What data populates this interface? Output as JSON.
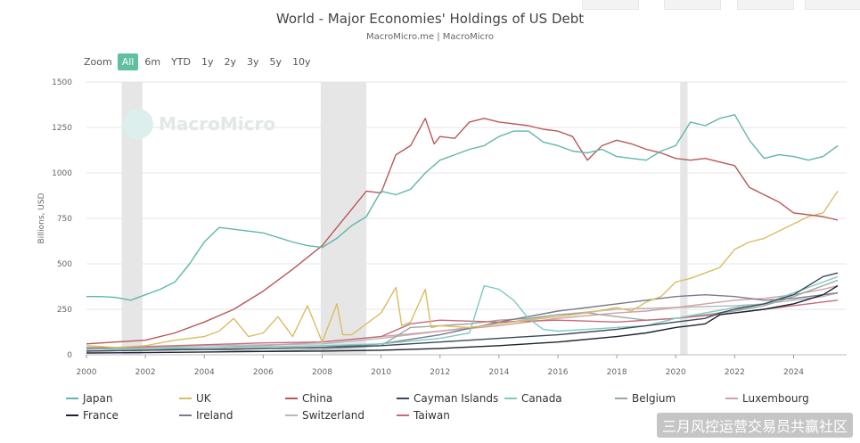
{
  "chart": {
    "title": "World - Major Economies' Holdings of US Debt",
    "subtitle": "MacroMicro.me | MacroMicro",
    "watermark_text": "MacroMicro"
  },
  "zoom": {
    "label": "Zoom",
    "options": [
      "All",
      "6m",
      "YTD",
      "1y",
      "2y",
      "3y",
      "5y",
      "10y"
    ],
    "active": "All"
  },
  "corner_watermark": "三月风控运营交易员共赢社区",
  "colors": {
    "Japan": "#5fb7aa",
    "UK": "#d9bd62",
    "China": "#b85858",
    "Cayman Islands": "#3a4a5c",
    "Canada": "#7fc9c2",
    "Belgium": "#99a8a0",
    "Luxembourg": "#d0a0a8",
    "France": "#1d2330",
    "Ireland": "#7a7a8c",
    "Switzerland": "#b8b8b8",
    "Taiwan": "#c86a78"
  },
  "chart_data": {
    "type": "line",
    "title": "World - Major Economies' Holdings of US Debt",
    "xlabel": "",
    "ylabel": "Billions, USD",
    "xlim": [
      2000,
      2025.8
    ],
    "ylim": [
      0,
      1500
    ],
    "x_ticks": [
      2000,
      2002,
      2004,
      2006,
      2008,
      2010,
      2012,
      2014,
      2016,
      2018,
      2020,
      2022,
      2024
    ],
    "y_ticks": [
      0,
      250,
      500,
      750,
      1000,
      1250,
      1500
    ],
    "recession_shading": [
      [
        2001.2,
        2001.9
      ],
      [
        2007.95,
        2009.5
      ],
      [
        2020.15,
        2020.4
      ]
    ],
    "legend_position": "bottom",
    "series": [
      {
        "name": "Japan",
        "x": [
          2000,
          2000.5,
          2001,
          2001.5,
          2002,
          2002.5,
          2003,
          2003.5,
          2004,
          2004.5,
          2005,
          2006,
          2007,
          2007.5,
          2008,
          2008.5,
          2009,
          2009.5,
          2010,
          2010.5,
          2011,
          2011.5,
          2012,
          2012.5,
          2013,
          2013.5,
          2014,
          2014.5,
          2015,
          2015.5,
          2016,
          2016.5,
          2017,
          2017.5,
          2018,
          2018.5,
          2019,
          2019.5,
          2020,
          2020.5,
          2021,
          2021.5,
          2022,
          2022.5,
          2023,
          2023.5,
          2024,
          2024.5,
          2025,
          2025.5
        ],
        "values": [
          320,
          320,
          315,
          300,
          330,
          360,
          400,
          500,
          620,
          700,
          690,
          670,
          620,
          600,
          590,
          640,
          710,
          760,
          900,
          880,
          910,
          1000,
          1070,
          1100,
          1130,
          1150,
          1200,
          1230,
          1230,
          1170,
          1150,
          1120,
          1110,
          1130,
          1090,
          1080,
          1070,
          1120,
          1150,
          1280,
          1260,
          1300,
          1320,
          1180,
          1080,
          1100,
          1090,
          1070,
          1090,
          1150
        ]
      },
      {
        "name": "UK",
        "x": [
          2000,
          2001,
          2002,
          2003,
          2004,
          2004.5,
          2005,
          2005.5,
          2006,
          2006.5,
          2007,
          2007.5,
          2008,
          2008.5,
          2008.7,
          2009,
          2010,
          2010.5,
          2010.7,
          2011,
          2011.5,
          2011.7,
          2012,
          2013,
          2014,
          2015,
          2016,
          2017,
          2018,
          2018.5,
          2019,
          2019.5,
          2020,
          2020.5,
          2021,
          2021.5,
          2022,
          2022.5,
          2023,
          2023.5,
          2024,
          2024.5,
          2025,
          2025.5
        ],
        "values": [
          50,
          40,
          50,
          80,
          100,
          130,
          200,
          100,
          120,
          210,
          100,
          270,
          70,
          280,
          110,
          110,
          230,
          370,
          160,
          180,
          360,
          150,
          160,
          150,
          170,
          190,
          210,
          230,
          260,
          240,
          290,
          320,
          400,
          420,
          450,
          480,
          580,
          620,
          640,
          680,
          720,
          760,
          780,
          900
        ]
      },
      {
        "name": "China",
        "x": [
          2000,
          2001,
          2002,
          2003,
          2004,
          2005,
          2006,
          2007,
          2008,
          2008.5,
          2009,
          2009.5,
          2010,
          2010.5,
          2011,
          2011.5,
          2011.8,
          2012,
          2012.5,
          2013,
          2013.5,
          2014,
          2014.5,
          2015,
          2015.5,
          2016,
          2016.5,
          2017,
          2017.5,
          2018,
          2018.5,
          2019,
          2019.5,
          2020,
          2020.5,
          2021,
          2021.5,
          2022,
          2022.5,
          2023,
          2023.5,
          2024,
          2024.5,
          2025,
          2025.5
        ],
        "values": [
          60,
          70,
          80,
          120,
          180,
          250,
          350,
          470,
          600,
          700,
          800,
          900,
          890,
          1100,
          1150,
          1300,
          1160,
          1200,
          1190,
          1280,
          1300,
          1280,
          1270,
          1260,
          1240,
          1230,
          1200,
          1070,
          1150,
          1180,
          1160,
          1130,
          1110,
          1080,
          1070,
          1080,
          1060,
          1040,
          920,
          880,
          840,
          780,
          770,
          760,
          740
        ]
      },
      {
        "name": "Cayman Islands",
        "x": [
          2000,
          2002,
          2004,
          2006,
          2008,
          2010,
          2012,
          2014,
          2016,
          2018,
          2019,
          2020,
          2021,
          2021.5,
          2022,
          2023,
          2024,
          2024.5,
          2025,
          2025.5
        ],
        "values": [
          20,
          25,
          30,
          35,
          40,
          50,
          70,
          90,
          110,
          140,
          160,
          180,
          200,
          230,
          250,
          280,
          330,
          380,
          430,
          450
        ]
      },
      {
        "name": "Canada",
        "x": [
          2000,
          2002,
          2004,
          2006,
          2008,
          2010,
          2012,
          2013,
          2013.5,
          2014,
          2014.5,
          2015,
          2015.5,
          2016,
          2017,
          2018,
          2019,
          2020,
          2021,
          2022,
          2023,
          2024,
          2025,
          2025.5
        ],
        "values": [
          30,
          35,
          40,
          45,
          50,
          60,
          90,
          120,
          380,
          360,
          300,
          200,
          140,
          130,
          140,
          150,
          160,
          200,
          230,
          260,
          280,
          340,
          400,
          430
        ]
      },
      {
        "name": "Belgium",
        "x": [
          2000,
          2002,
          2004,
          2006,
          2008,
          2010,
          2011,
          2012,
          2013,
          2014,
          2015,
          2016,
          2017,
          2018,
          2019,
          2020,
          2021,
          2022,
          2023,
          2024,
          2025,
          2025.5
        ],
        "values": [
          40,
          35,
          30,
          20,
          30,
          50,
          150,
          160,
          170,
          190,
          200,
          220,
          230,
          210,
          190,
          200,
          220,
          240,
          270,
          320,
          380,
          410
        ]
      },
      {
        "name": "Luxembourg",
        "x": [
          2000,
          2002,
          2004,
          2006,
          2008,
          2010,
          2012,
          2014,
          2016,
          2018,
          2019,
          2020,
          2021,
          2022,
          2023,
          2024,
          2025,
          2025.5
        ],
        "values": [
          30,
          35,
          40,
          50,
          70,
          100,
          130,
          160,
          200,
          230,
          240,
          260,
          280,
          300,
          310,
          330,
          360,
          380
        ]
      },
      {
        "name": "France",
        "x": [
          2000,
          2002,
          2004,
          2006,
          2008,
          2010,
          2012,
          2014,
          2016,
          2018,
          2019,
          2020,
          2020.5,
          2021,
          2021.5,
          2022,
          2023,
          2024,
          2025,
          2025.5
        ],
        "values": [
          10,
          12,
          15,
          18,
          20,
          25,
          35,
          50,
          70,
          100,
          120,
          150,
          160,
          170,
          220,
          230,
          250,
          280,
          330,
          380
        ]
      },
      {
        "name": "Ireland",
        "x": [
          2000,
          2002,
          2004,
          2006,
          2008,
          2010,
          2012,
          2014,
          2016,
          2017,
          2018,
          2019,
          2020,
          2021,
          2022,
          2023,
          2024,
          2025,
          2025.5
        ],
        "values": [
          20,
          25,
          30,
          35,
          40,
          60,
          110,
          180,
          240,
          260,
          280,
          300,
          320,
          330,
          320,
          300,
          310,
          330,
          340
        ]
      },
      {
        "name": "Switzerland",
        "x": [
          2000,
          2002,
          2004,
          2006,
          2008,
          2010,
          2012,
          2014,
          2016,
          2018,
          2020,
          2022,
          2023,
          2024,
          2025,
          2025.5
        ],
        "values": [
          30,
          40,
          50,
          55,
          60,
          90,
          130,
          170,
          220,
          250,
          260,
          270,
          280,
          300,
          320,
          340
        ]
      },
      {
        "name": "Taiwan",
        "x": [
          2000,
          2002,
          2004,
          2006,
          2008,
          2010,
          2011,
          2012,
          2014,
          2016,
          2018,
          2020,
          2022,
          2023,
          2024,
          2025,
          2025.5
        ],
        "values": [
          35,
          45,
          55,
          65,
          70,
          100,
          170,
          190,
          180,
          190,
          180,
          200,
          230,
          250,
          270,
          290,
          300
        ]
      }
    ]
  }
}
